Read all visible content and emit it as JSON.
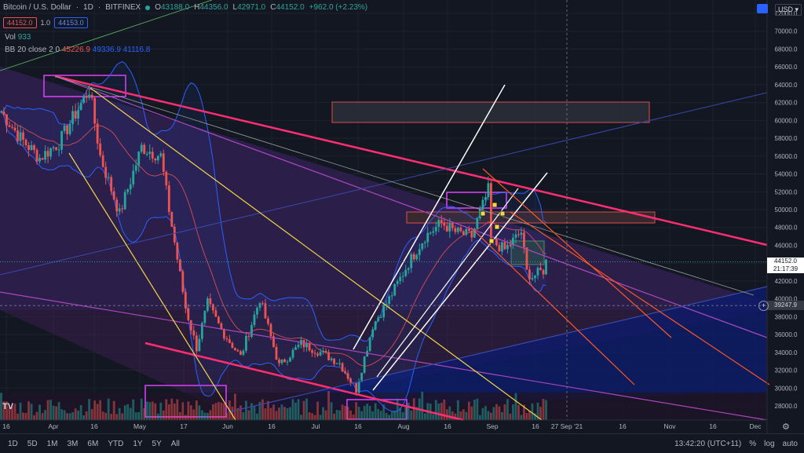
{
  "header": {
    "symbol": "Bitcoin / U.S. Dollar",
    "interval": "1D",
    "exchange": "BITFINEX",
    "ohlc": {
      "O": "43188.0",
      "H": "44356.0",
      "L": "42971.0",
      "C": "44152.0",
      "change": "+962.0 (+2.23%)"
    },
    "bid": "44152.0",
    "spread": "1.0",
    "ask": "44153.0"
  },
  "indicators": {
    "vol_label": "Vol",
    "vol_value": "933",
    "bb_label": "BB 20 close 2 0",
    "bb_basis": "45226.9",
    "bb_upper": "49336.9",
    "bb_lower": "41116.8"
  },
  "currency": "USD",
  "price_labels": {
    "last_price": "44152.0",
    "countdown": "21:17:39",
    "crosshair": "39247.9"
  },
  "toolbar": {
    "timeframes": [
      "1D",
      "5D",
      "1M",
      "3M",
      "6M",
      "YTD",
      "1Y",
      "5Y",
      "All"
    ],
    "time": "13:42:20 (UTC+11)",
    "percent": "%",
    "log": "log",
    "auto": "auto"
  },
  "colors": {
    "up": "#26a69a",
    "down": "#ef5350",
    "bb": "#2962ff",
    "magenta_line": "#ff2d72",
    "yellow_line": "#f5d547",
    "orange_line": "#ff5722",
    "white_line": "#ffffff",
    "violet_line": "#ab47bc"
  },
  "chart_data": {
    "type": "candlestick",
    "y_axis": {
      "min": 26500,
      "max": 73000,
      "ticks": [
        28000,
        30000,
        32000,
        34000,
        36000,
        38000,
        40000,
        42000,
        44000,
        46000,
        48000,
        50000,
        52000,
        54000,
        56000,
        58000,
        60000,
        62000,
        64000,
        66000,
        68000,
        70000,
        72000
      ]
    },
    "x_axis": {
      "ticks": [
        "16",
        "Apr",
        "16",
        "May",
        "17",
        "Jun",
        "16",
        "Jul",
        "16",
        "Aug",
        "16",
        "Sep",
        "16",
        "27 Sep '21",
        "16",
        "Nov",
        "16",
        "Dec"
      ]
    },
    "close_path": [
      [
        "2021-03-13",
        61000
      ],
      [
        "2021-03-20",
        58000
      ],
      [
        "2021-03-27",
        55800
      ],
      [
        "2021-04-03",
        57500
      ],
      [
        "2021-04-14",
        63500
      ],
      [
        "2021-04-18",
        56000
      ],
      [
        "2021-04-25",
        49500
      ],
      [
        "2021-05-03",
        57000
      ],
      [
        "2021-05-10",
        56000
      ],
      [
        "2021-05-13",
        50000
      ],
      [
        "2021-05-19",
        39000
      ],
      [
        "2021-05-23",
        34500
      ],
      [
        "2021-05-27",
        39500
      ],
      [
        "2021-06-01",
        36500
      ],
      [
        "2021-06-08",
        33500
      ],
      [
        "2021-06-15",
        40000
      ],
      [
        "2021-06-22",
        32500
      ],
      [
        "2021-06-30",
        35000
      ],
      [
        "2021-07-07",
        34000
      ],
      [
        "2021-07-14",
        32800
      ],
      [
        "2021-07-20",
        29800
      ],
      [
        "2021-07-26",
        37000
      ],
      [
        "2021-08-01",
        40000
      ],
      [
        "2021-08-08",
        44000
      ],
      [
        "2021-08-14",
        47000
      ],
      [
        "2021-08-20",
        48500
      ],
      [
        "2021-08-25",
        47500
      ],
      [
        "2021-08-31",
        47000
      ],
      [
        "2021-09-06",
        52200
      ],
      [
        "2021-09-07",
        46500
      ],
      [
        "2021-09-12",
        45500
      ],
      [
        "2021-09-18",
        47500
      ],
      [
        "2021-09-20",
        43000
      ],
      [
        "2021-09-22",
        42500
      ],
      [
        "2021-09-26",
        43200
      ],
      [
        "2021-09-27",
        44152
      ]
    ],
    "last_price": 44152
  }
}
